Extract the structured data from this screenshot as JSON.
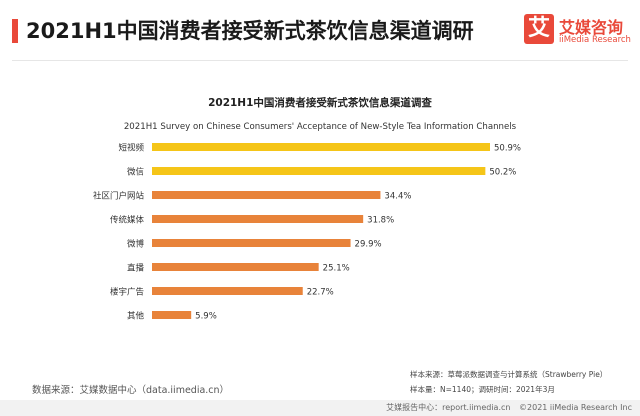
{
  "header": {
    "title": "2021H1中国消费者接受新式茶饮信息渠道调研",
    "logo_mark": "艾",
    "logo_cn": "艾媒咨询",
    "logo_en": "iiMedia Research"
  },
  "chart_data": {
    "type": "bar",
    "orientation": "horizontal",
    "title": "2021H1中国消费者接受新式茶饮信息渠道调查",
    "subtitle": "2021H1 Survey on Chinese Consumers' Acceptance of New-Style Tea Information Channels",
    "categories": [
      "短视频",
      "微信",
      "社区门户网站",
      "传统媒体",
      "微博",
      "直播",
      "楼宇广告",
      "其他"
    ],
    "values": [
      50.9,
      50.2,
      34.4,
      31.8,
      29.9,
      25.1,
      22.7,
      5.9
    ],
    "value_labels": [
      "50.9%",
      "50.2%",
      "34.4%",
      "31.8%",
      "29.9%",
      "25.1%",
      "22.7%",
      "5.9%"
    ],
    "unit": "%",
    "xlim": [
      0,
      50.9
    ],
    "colors": [
      "#f5c518",
      "#f5c518",
      "#e8833a",
      "#e8833a",
      "#e8833a",
      "#e8833a",
      "#e8833a",
      "#e8833a"
    ],
    "grid": false,
    "legend": "none"
  },
  "footer": {
    "source": "数据来源：艾媒数据中心（data.iimedia.cn）",
    "sample_source": "样本来源：草莓派数据调查与计算系统（Strawberry Pie）",
    "sample_size": "样本量：N=1140；调研时间：2021年3月"
  },
  "bottom_bar": {
    "report_center": "艾媒报告中心：report.iimedia.cn",
    "copyright": "©2021  iiMedia Research  Inc"
  }
}
